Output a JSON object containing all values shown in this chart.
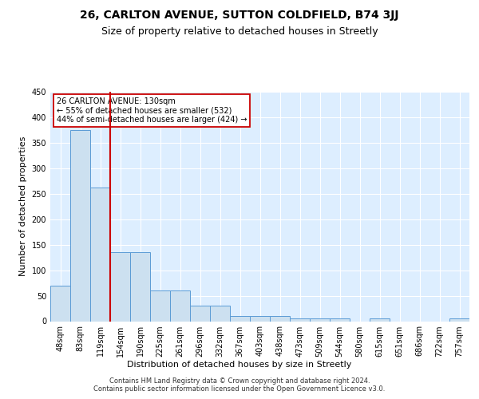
{
  "title1": "26, CARLTON AVENUE, SUTTON COLDFIELD, B74 3JJ",
  "title2": "Size of property relative to detached houses in Streetly",
  "xlabel": "Distribution of detached houses by size in Streetly",
  "ylabel": "Number of detached properties",
  "footer": "Contains HM Land Registry data © Crown copyright and database right 2024.\nContains public sector information licensed under the Open Government Licence v3.0.",
  "bin_labels": [
    "48sqm",
    "83sqm",
    "119sqm",
    "154sqm",
    "190sqm",
    "225sqm",
    "261sqm",
    "296sqm",
    "332sqm",
    "367sqm",
    "403sqm",
    "438sqm",
    "473sqm",
    "509sqm",
    "544sqm",
    "580sqm",
    "615sqm",
    "651sqm",
    "686sqm",
    "722sqm",
    "757sqm"
  ],
  "bar_heights": [
    70,
    375,
    262,
    135,
    135,
    60,
    60,
    30,
    30,
    10,
    10,
    10,
    5,
    5,
    5,
    0,
    5,
    0,
    0,
    0,
    5
  ],
  "bar_color": "#cce0f0",
  "bar_edge_color": "#5b9bd5",
  "red_line_bin": 2,
  "red_line_color": "#cc0000",
  "annotation_line1": "26 CARLTON AVENUE: 130sqm",
  "annotation_line2": "← 55% of detached houses are smaller (532)",
  "annotation_line3": "44% of semi-detached houses are larger (424) →",
  "annotation_box_color": "#ffffff",
  "annotation_box_edge": "#cc0000",
  "ylim": [
    0,
    450
  ],
  "yticks": [
    0,
    50,
    100,
    150,
    200,
    250,
    300,
    350,
    400,
    450
  ],
  "background_color": "#ddeeff",
  "grid_color": "#ffffff",
  "title1_fontsize": 10,
  "title2_fontsize": 9,
  "ylabel_fontsize": 8,
  "xlabel_fontsize": 8,
  "tick_fontsize": 7,
  "footer_fontsize": 6
}
